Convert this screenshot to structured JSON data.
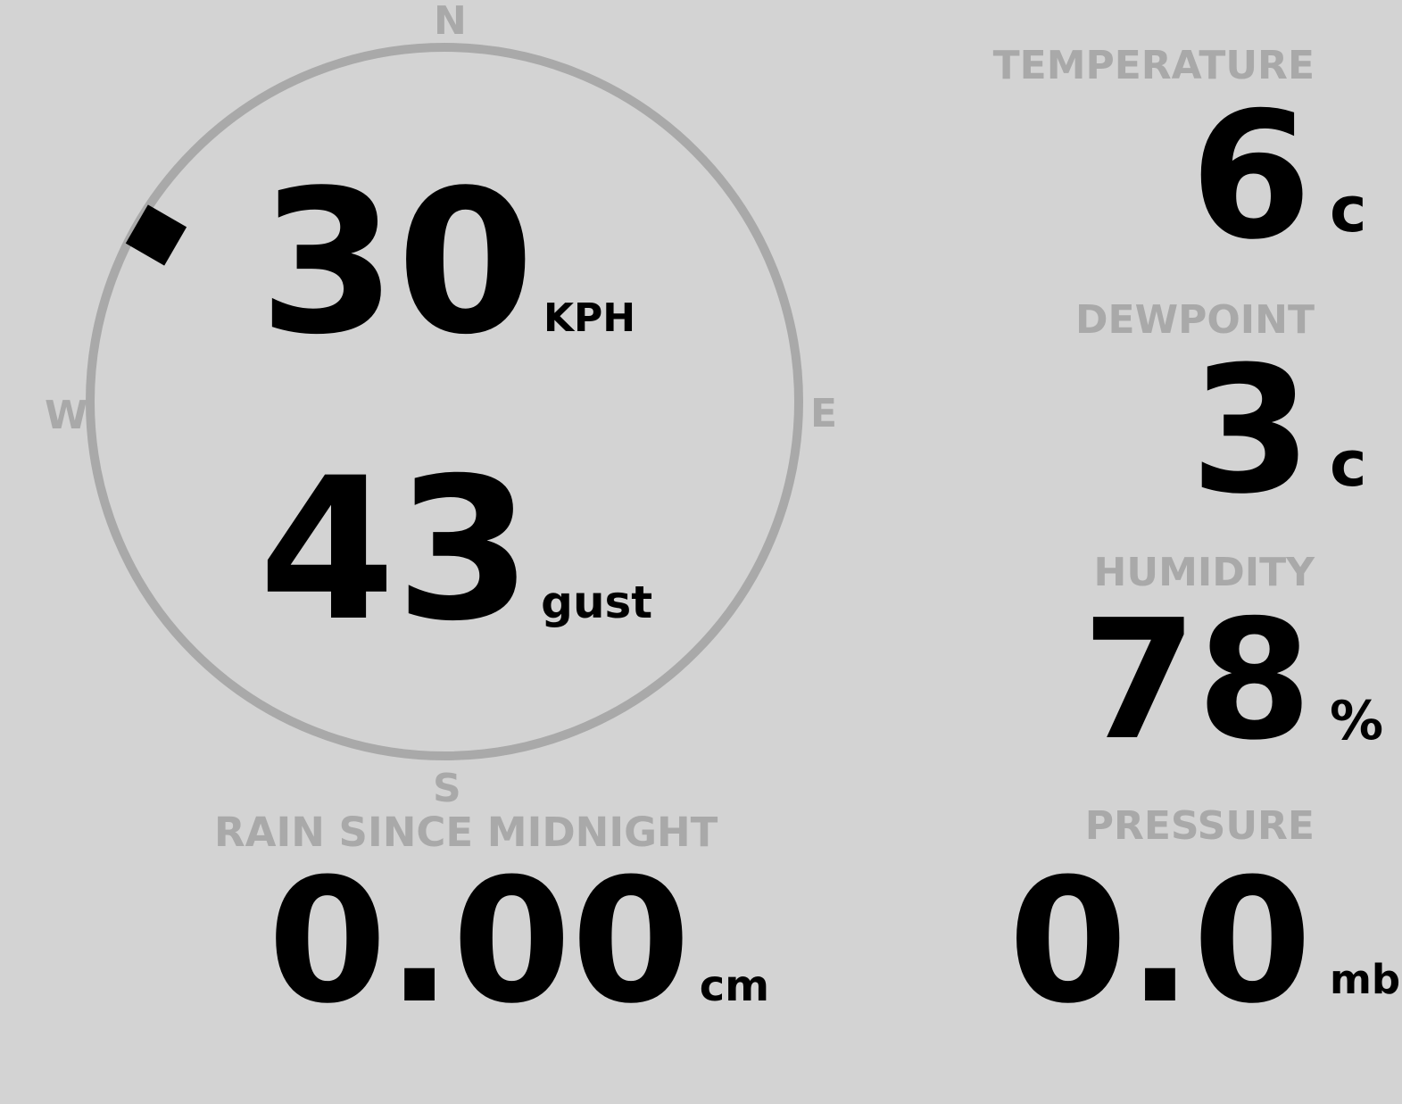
{
  "compass": {
    "north": "N",
    "south": "S",
    "east": "E",
    "west": "W",
    "direction_degrees": 300,
    "ring_color": "#a9a9a9"
  },
  "wind": {
    "speed": "30",
    "speed_unit": "KPH",
    "gust": "43",
    "gust_unit": "gust"
  },
  "rain": {
    "label": "RAIN SINCE MIDNIGHT",
    "value": "0.00",
    "unit": "cm"
  },
  "temperature": {
    "label": "TEMPERATURE",
    "value": "6",
    "unit": "c"
  },
  "dewpoint": {
    "label": "DEWPOINT",
    "value": "3",
    "unit": "c"
  },
  "humidity": {
    "label": "HUMIDITY",
    "value": "78",
    "unit": "%"
  },
  "pressure": {
    "label": "PRESSURE",
    "value": "0.0",
    "unit": "mb"
  },
  "colors": {
    "background": "#d3d3d3",
    "label": "#a9a9a9",
    "value": "#000000"
  }
}
